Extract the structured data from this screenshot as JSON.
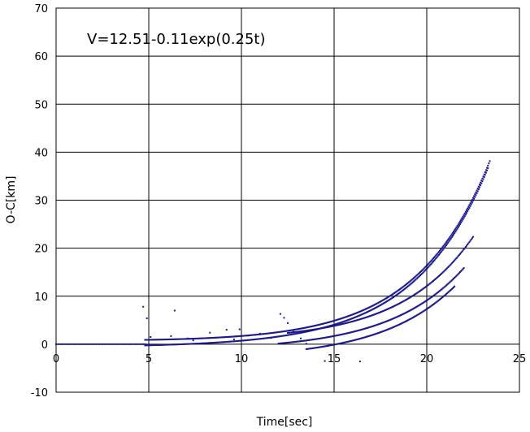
{
  "chart_data": {
    "type": "scatter",
    "title": "",
    "annotation": "V=12.51-0.11exp(0.25t)",
    "xlabel": "Time[sec]",
    "ylabel": "O-C[km]",
    "xlim": [
      0,
      25
    ],
    "ylim": [
      -10,
      70
    ],
    "xticks": [
      0,
      5,
      10,
      15,
      20,
      25
    ],
    "yticks": [
      -10,
      0,
      10,
      20,
      30,
      40,
      50,
      60,
      70
    ],
    "grid": true,
    "legend": "none",
    "marker_color": "#1a1a8c",
    "series": [
      {
        "values": [
          {
            "t0": 0.0,
            "t1": 4.8,
            "step": 0.1,
            "curve": "flat",
            "level": 0.0
          },
          {
            "t0": 4.8,
            "t1": 23.4,
            "step": 0.05,
            "curve": "exp",
            "a": 0.11,
            "b": 0.25,
            "offset": 0.8
          },
          {
            "t0": 4.8,
            "t1": 23.3,
            "step": 0.05,
            "curve": "exp",
            "a": 0.11,
            "b": 0.25,
            "offset": -0.5
          },
          {
            "t0": 12.5,
            "t1": 22.5,
            "step": 0.05,
            "curve": "exp",
            "a": 0.0805,
            "b": 0.25,
            "offset": 1.2
          },
          {
            "t0": 12.0,
            "t1": 22.0,
            "step": 0.05,
            "curve": "exp",
            "a": 0.07,
            "b": 0.25,
            "offset": -1.2
          },
          {
            "t0": 13.5,
            "t1": 21.5,
            "step": 0.05,
            "curve": "exp",
            "a": 0.07,
            "b": 0.25,
            "offset": -3.0
          }
        ],
        "outliers": [
          [
            4.7,
            7.8
          ],
          [
            4.9,
            5.4
          ],
          [
            5.1,
            1.5
          ],
          [
            6.4,
            7.0
          ],
          [
            6.2,
            1.7
          ],
          [
            7.1,
            1.2
          ],
          [
            7.4,
            0.8
          ],
          [
            8.3,
            2.4
          ],
          [
            9.2,
            3.0
          ],
          [
            9.9,
            3.1
          ],
          [
            9.6,
            1.0
          ],
          [
            10.4,
            1.8
          ],
          [
            11.0,
            2.2
          ],
          [
            11.6,
            1.3
          ],
          [
            14.5,
            -3.5
          ],
          [
            16.4,
            -3.6
          ],
          [
            12.1,
            6.3
          ],
          [
            12.3,
            5.5
          ],
          [
            12.5,
            4.4
          ],
          [
            12.8,
            2.6
          ],
          [
            13.2,
            1.2
          ],
          [
            13.5,
            0.1
          ]
        ]
      }
    ]
  }
}
